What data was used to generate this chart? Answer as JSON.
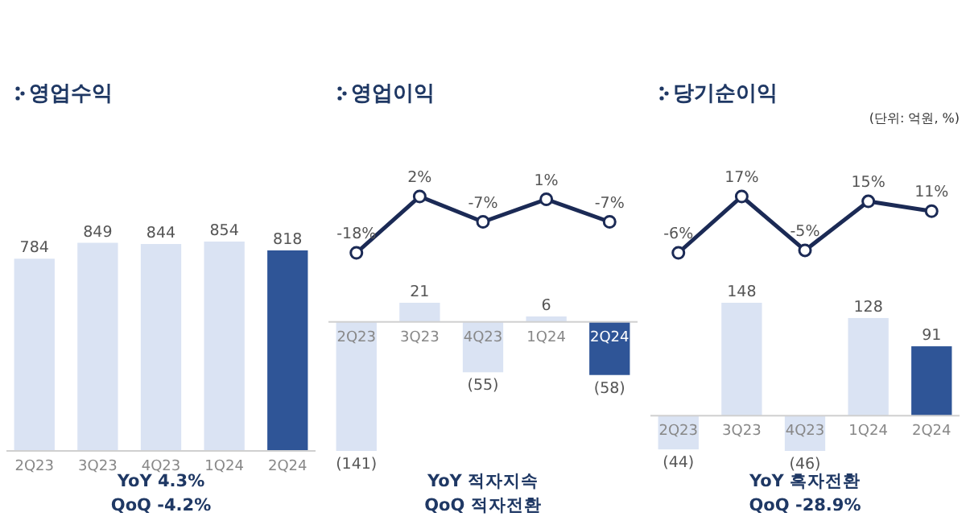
{
  "chart_data": [
    {
      "type": "bar",
      "title": "영업수익",
      "categories": [
        "2Q23",
        "3Q23",
        "4Q23",
        "1Q24",
        "2Q24"
      ],
      "data_labels": true,
      "values": [
        784,
        849,
        844,
        854,
        818
      ],
      "colors": [
        "#dae3f3",
        "#dae3f3",
        "#dae3f3",
        "#dae3f3",
        "#2f5597"
      ],
      "annotations": [
        "YoY  4.3%",
        "QoQ  -4.2%"
      ]
    },
    {
      "type": "line",
      "title": "영업이익",
      "categories": [
        null,
        null,
        null,
        null,
        null
      ],
      "marker": "circle",
      "series": [
        {
          "color": "#1b2a55",
          "values": [
            -18,
            2,
            -7,
            1,
            -7
          ],
          "value_labels": [
            "-18%",
            "2%",
            "-7%",
            "1%",
            "-7%"
          ]
        }
      ]
    },
    {
      "type": "bar",
      "categories": [
        "2Q23",
        "3Q23",
        "4Q23",
        "1Q24",
        "2Q24"
      ],
      "values": [
        -141,
        21,
        -55,
        6,
        -58
      ],
      "colors": [
        "#dae3f3",
        "#dae3f3",
        "#dae3f3",
        "#dae3f3",
        "#2f5597"
      ],
      "value_labels": [
        "(141)",
        "21",
        "(55)",
        "6",
        "(58)"
      ],
      "annotations": [
        "YoY  적자지속",
        "QoQ  적자전환"
      ]
    },
    {
      "type": "line",
      "title": "당기순이익",
      "subtitle": "(단위: 억원, %)",
      "categories": [
        null,
        null,
        null,
        null,
        null
      ],
      "marker": "circle",
      "series": [
        {
          "color": "#1b2a55",
          "values": [
            -6,
            17,
            -5,
            15,
            11
          ],
          "value_labels": [
            "-6%",
            "17%",
            "-5%",
            "15%",
            "11%"
          ]
        }
      ]
    },
    {
      "type": "bar",
      "categories": [
        "2Q23",
        "3Q23",
        "4Q23",
        "1Q24",
        "2Q24"
      ],
      "values": [
        -44,
        148,
        -46,
        128,
        91
      ],
      "colors": [
        "#dae3f3",
        "#dae3f3",
        "#dae3f3",
        "#dae3f3",
        "#2f5597"
      ],
      "value_labels": [
        "(44)",
        "148",
        "(46)",
        "128",
        "91"
      ],
      "annotations": [
        "YoY  흑자전환",
        "QoQ  -28.9%"
      ]
    }
  ]
}
